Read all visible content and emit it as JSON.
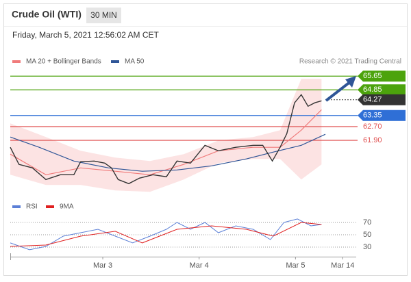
{
  "chart_data": {
    "type": "line",
    "title": "Crude Oil (WTI)",
    "timeframe": "30 MIN",
    "subtitle": "Friday, March 5, 2021 12:56:02 AM CET",
    "credit": "Research © 2021 Trading Central",
    "xlim": [
      2.04,
      5.63
    ],
    "xticks": [
      {
        "value": 3,
        "label": "Mar 3"
      },
      {
        "value": 4,
        "label": "Mar 4"
      },
      {
        "value": 5,
        "label": "Mar 5"
      },
      {
        "value": 5.49,
        "label": "Mar 14"
      }
    ],
    "ylim": [
      58.7,
      66.1
    ],
    "price": {
      "color": "#333333",
      "x": [
        2.04,
        2.13,
        2.27,
        2.41,
        2.56,
        2.7,
        2.77,
        2.91,
        3.02,
        3.09,
        3.16,
        3.27,
        3.38,
        3.52,
        3.66,
        3.77,
        3.91,
        4.06,
        4.2,
        4.38,
        4.56,
        4.66,
        4.76,
        4.84,
        4.91,
        4.99,
        5.06,
        5.13,
        5.2,
        5.27
      ],
      "values": [
        61.49,
        60.49,
        60.29,
        59.61,
        59.89,
        59.89,
        60.65,
        60.69,
        60.57,
        60.29,
        59.61,
        59.37,
        59.69,
        59.89,
        59.77,
        60.69,
        60.57,
        61.61,
        61.29,
        61.49,
        61.61,
        61.61,
        60.69,
        61.49,
        62.29,
        64.09,
        64.57,
        63.89,
        64.09,
        64.21
      ]
    },
    "series": [
      {
        "name": "MA 20 + Bollinger Bands",
        "color": "#f07b7b",
        "band_color": "#fbdcdc",
        "x": [
          2.04,
          2.41,
          2.77,
          3.13,
          3.49,
          3.84,
          4.2,
          4.56,
          4.84,
          5.06,
          5.27
        ],
        "values": [
          61.09,
          59.89,
          60.29,
          60.09,
          59.89,
          60.49,
          61.29,
          61.49,
          61.49,
          62.49,
          63.69
        ],
        "upper": [
          62.89,
          62.09,
          61.29,
          60.89,
          60.69,
          61.09,
          61.89,
          62.09,
          62.49,
          65.49,
          65.49
        ],
        "lower": [
          59.89,
          59.29,
          59.29,
          58.97,
          58.89,
          59.61,
          60.57,
          60.81,
          60.81,
          59.61,
          60.49
        ]
      },
      {
        "name": "MA 50",
        "color": "#2f5597",
        "x": [
          2.04,
          2.34,
          2.7,
          3.06,
          3.41,
          3.77,
          4.13,
          4.49,
          4.77,
          5.06,
          5.31
        ],
        "values": [
          62.09,
          61.49,
          60.69,
          60.29,
          60.09,
          60.17,
          60.41,
          60.81,
          61.21,
          61.61,
          62.25
        ]
      }
    ],
    "levels": [
      {
        "value": 65.65,
        "color": "#4ca30c",
        "tag": true
      },
      {
        "value": 64.85,
        "color": "#4ca30c",
        "tag": true
      },
      {
        "value": 64.27,
        "color": "#333333",
        "tag": true,
        "dotted": true
      },
      {
        "value": 63.35,
        "color": "#2f6fd6",
        "tag": true
      },
      {
        "value": 62.7,
        "label": "62.70",
        "color": "#e05050",
        "tag": false
      },
      {
        "value": 61.9,
        "label": "61.90",
        "color": "#e05050",
        "tag": false
      }
    ],
    "rsi": {
      "ylim": [
        14.4,
        81.1
      ],
      "yticks": [
        70,
        50,
        30
      ],
      "series": [
        {
          "name": "RSI",
          "color": "#5b7fd6",
          "x": [
            2.04,
            2.24,
            2.41,
            2.59,
            2.77,
            2.95,
            3.13,
            3.31,
            3.49,
            3.66,
            3.77,
            3.91,
            4.06,
            4.2,
            4.38,
            4.56,
            4.74,
            4.88,
            5.02,
            5.16,
            5.27
          ],
          "values": [
            36.7,
            25.6,
            31.1,
            47.8,
            53.3,
            58.9,
            47.8,
            36.7,
            47.8,
            58.9,
            70,
            58.9,
            70,
            53.3,
            64.4,
            58.9,
            42.2,
            70,
            75.6,
            64.4,
            66.7
          ]
        },
        {
          "name": "9MA",
          "color": "#e02020",
          "x": [
            2.04,
            2.41,
            2.77,
            3.13,
            3.41,
            3.77,
            4.13,
            4.49,
            4.77,
            5.06,
            5.27
          ],
          "values": [
            31.1,
            33.3,
            47.8,
            55.6,
            36.7,
            58.9,
            64.4,
            58.9,
            47.8,
            70,
            66.7
          ]
        }
      ]
    }
  }
}
